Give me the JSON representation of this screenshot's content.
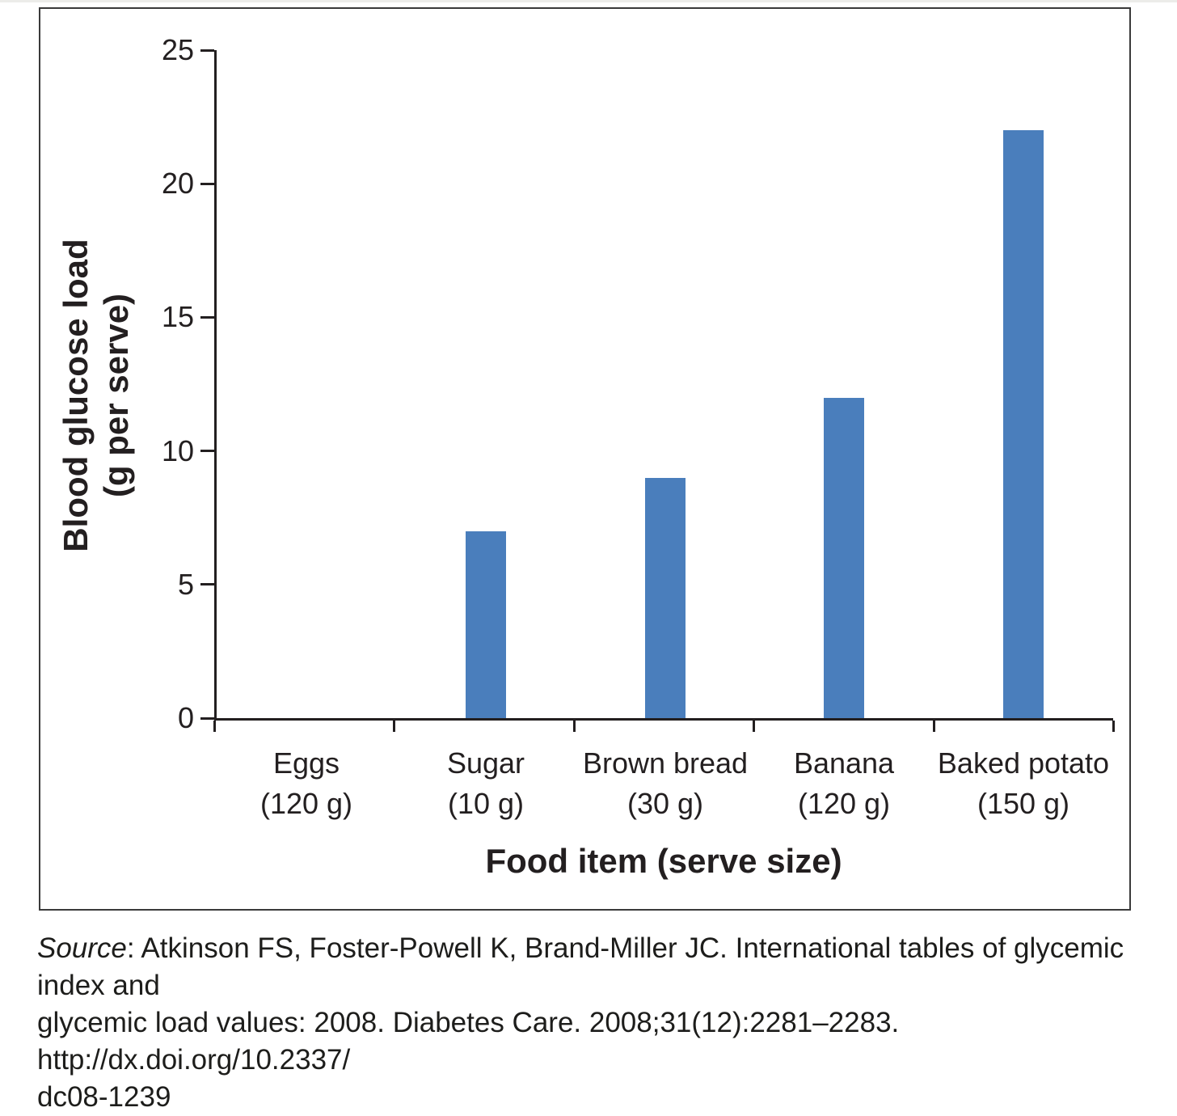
{
  "page": {
    "background": "#ffffff",
    "top_rule_color": "#ecece9",
    "frame_border_color": "#3a3a3a"
  },
  "chart_data": {
    "type": "bar",
    "title": "",
    "categories": [
      "Eggs",
      "Sugar",
      "Brown bread",
      "Banana",
      "Baked potato"
    ],
    "serve_sizes": [
      "(120 g)",
      "(10 g)",
      "(30 g)",
      "(120 g)",
      "(150 g)"
    ],
    "values": [
      0,
      7,
      9,
      12,
      22
    ],
    "xlabel": "Food item (serve size)",
    "ylabel": "Blood glucose load (g per serve)",
    "ylabel_lines": [
      "Blood glucose load",
      "(g per serve)"
    ],
    "yticks": [
      0,
      5,
      10,
      15,
      20,
      25
    ],
    "ylim": [
      0,
      25
    ],
    "grid": false,
    "legend": false,
    "bar_color": "#4a7ebc",
    "axis_color": "#231f20"
  },
  "source": {
    "lines": [
      {
        "italic_prefix": "Source",
        "rest": ": Atkinson FS, Foster-Powell K, Brand-Miller JC. International tables of glycemic index and"
      },
      {
        "italic_prefix": "",
        "rest": "glycemic load values: 2008. Diabetes Care. 2008;31(12):2281–2283. http://dx.doi.org/10.2337/"
      },
      {
        "italic_prefix": "",
        "rest": "dc08-1239"
      }
    ]
  }
}
